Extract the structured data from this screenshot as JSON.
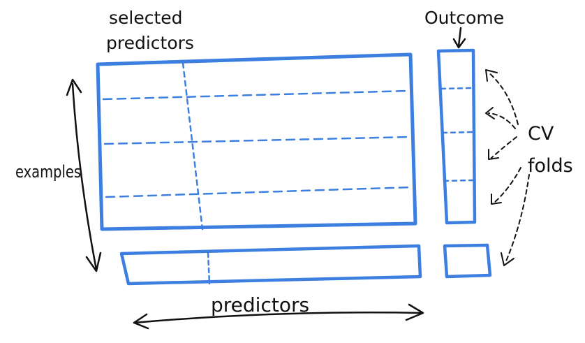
{
  "labels": {
    "selected_line1": "selected",
    "selected_line2": "predictors",
    "outcome": "Outcome",
    "examples": "examples",
    "cv_line1": "CV",
    "cv_line2": "folds",
    "predictors": "predictors"
  },
  "colors": {
    "matrix": "#3d7fe0",
    "ink": "#111111"
  }
}
